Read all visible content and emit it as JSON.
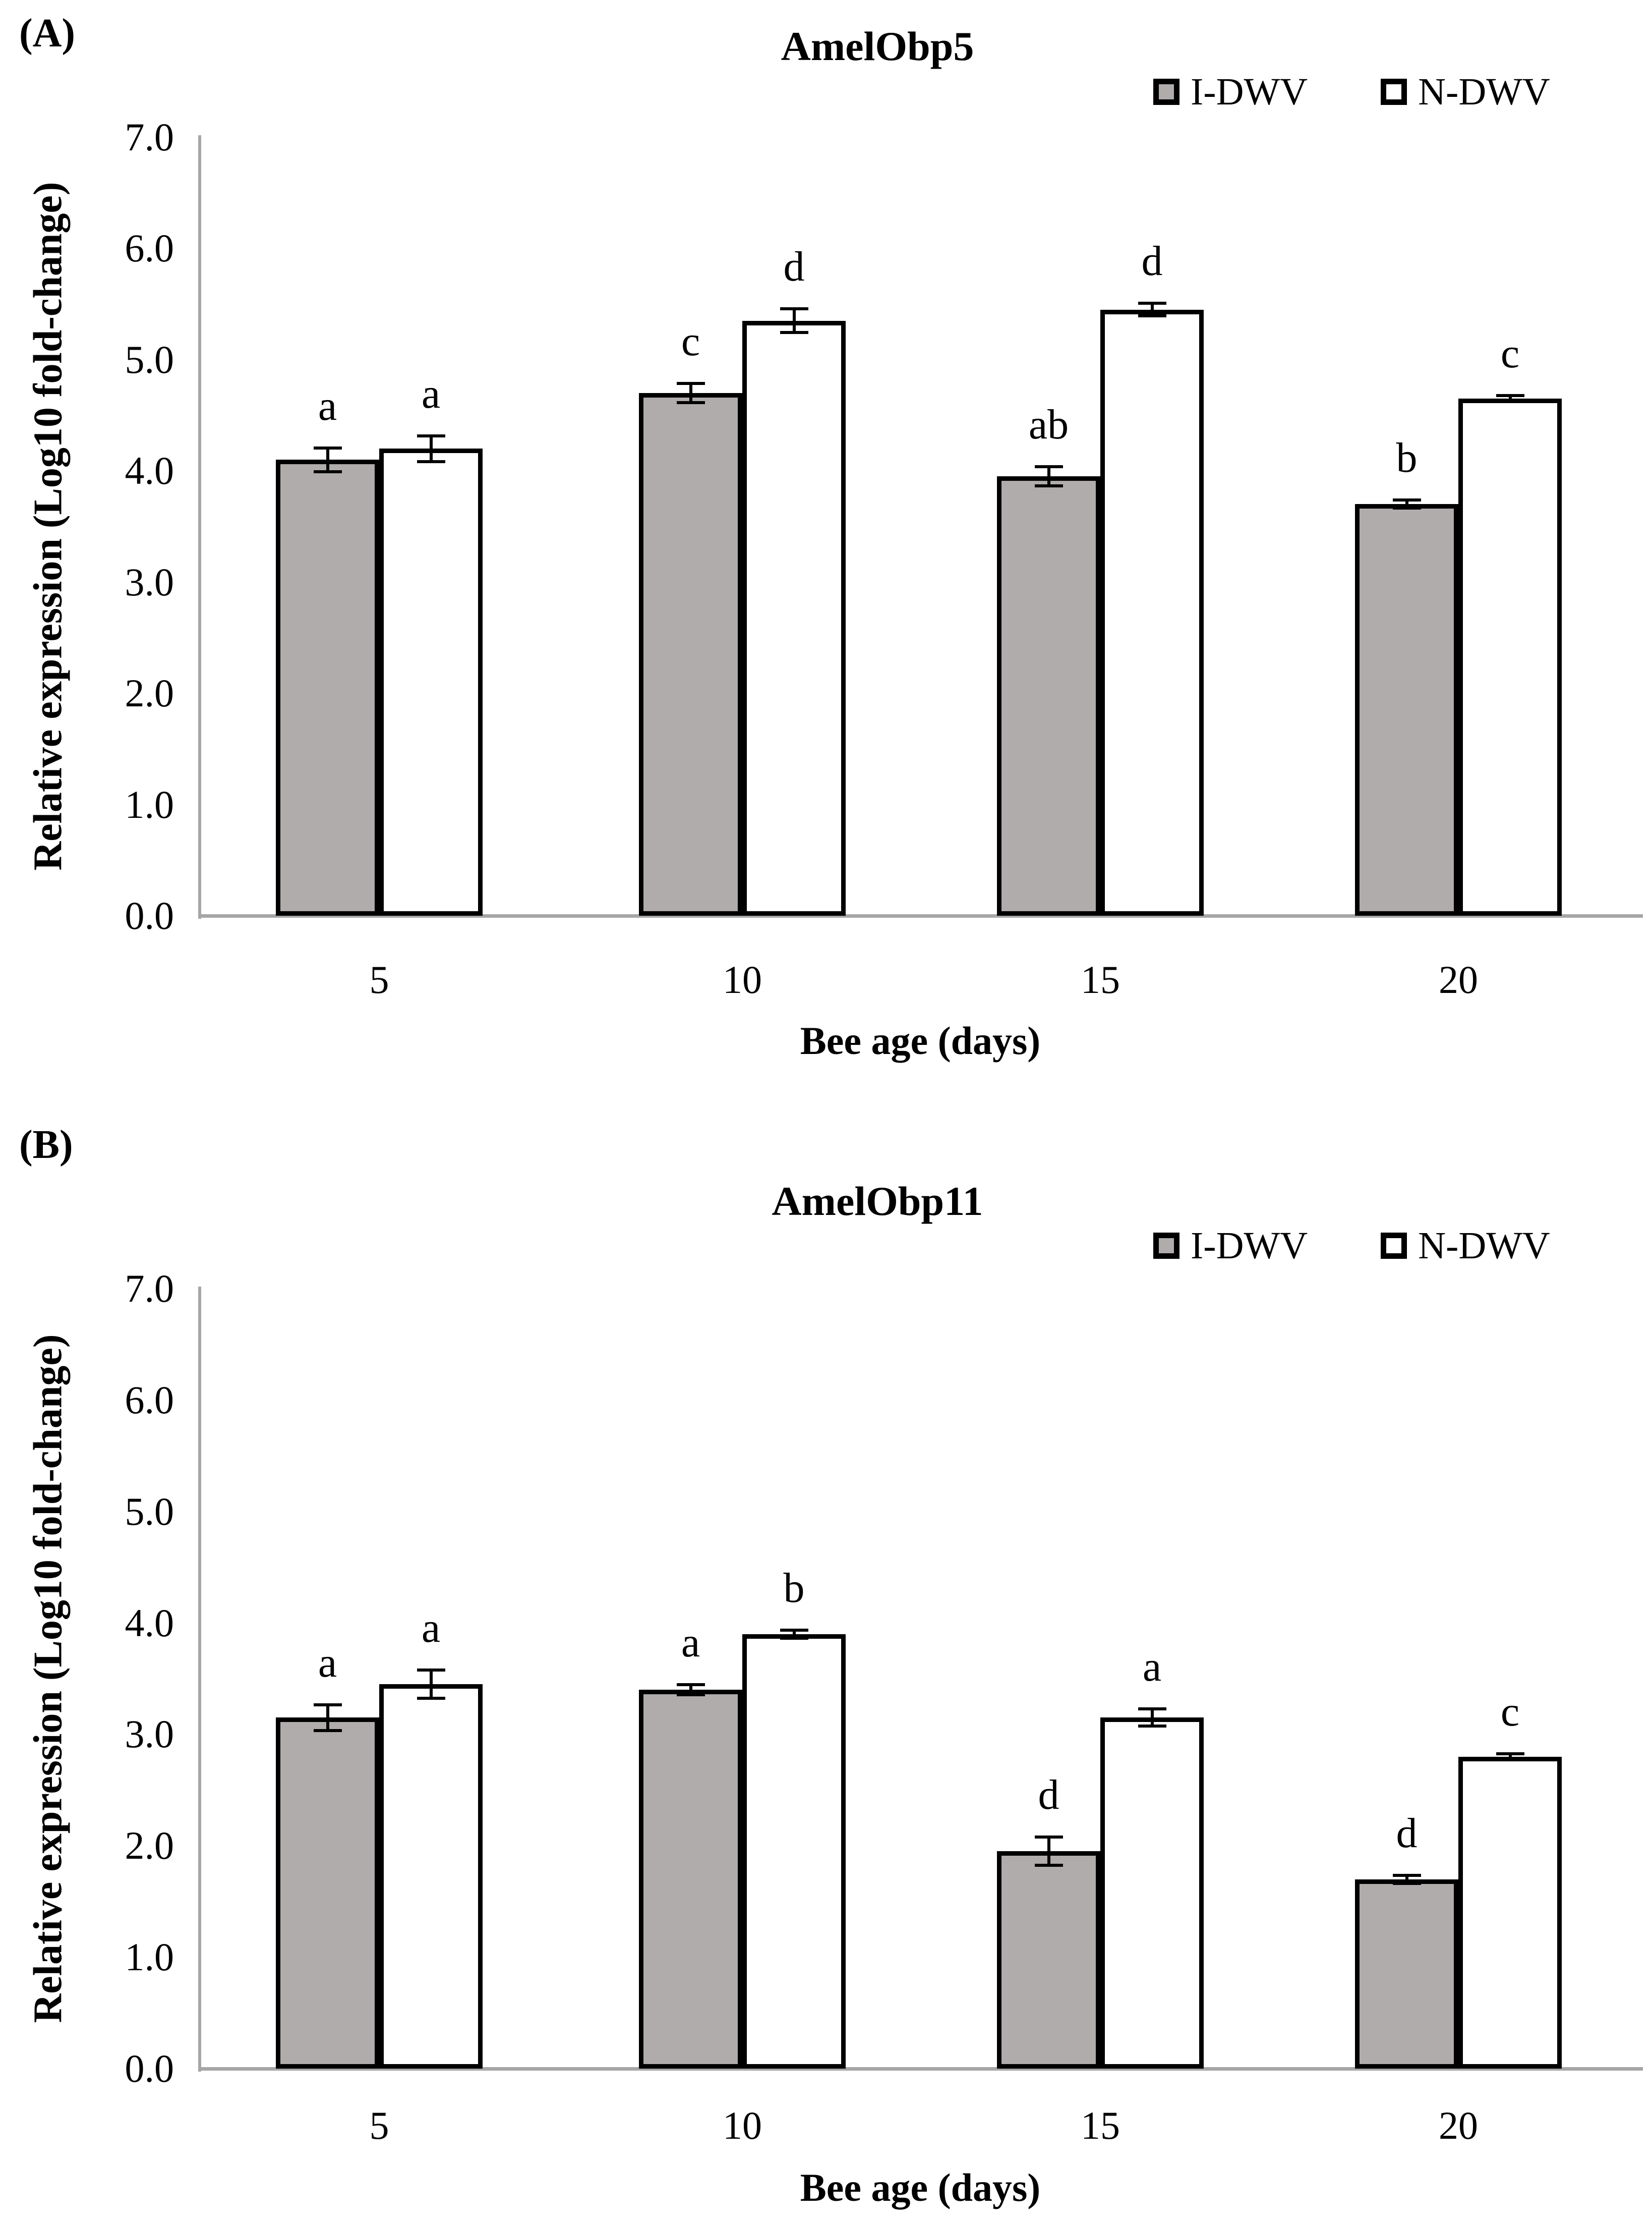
{
  "chart_data": [
    {
      "type": "bar",
      "panel_label": "(A)",
      "title": "AmelObp5",
      "xlabel": "Bee age (days)",
      "ylabel": "Relative expression (Log10 fold-change)",
      "categories": [
        "5",
        "10",
        "15",
        "20"
      ],
      "ytick_labels": [
        "7.0",
        "6.0",
        "5.0",
        "4.0",
        "3.0",
        "2.0",
        "1.0",
        "0.0"
      ],
      "ylim": [
        0.0,
        7.0
      ],
      "grid": false,
      "legend_position": "top-right",
      "axis_color": "#A6A6A6",
      "bar_border_color": "#000000",
      "series": [
        {
          "name": "I-DWV",
          "fill": "#AFACAB",
          "values": [
            4.1,
            4.7,
            3.95,
            3.7
          ],
          "errors": [
            0.12,
            0.1,
            0.1,
            0.05
          ],
          "letters": [
            "a",
            "c",
            "ab",
            "b"
          ]
        },
        {
          "name": "N-DWV",
          "fill": "#FFFFFF",
          "values": [
            4.2,
            5.35,
            5.45,
            4.65
          ],
          "errors": [
            0.13,
            0.12,
            0.07,
            0.04
          ],
          "letters": [
            "a",
            "d",
            "d",
            "c"
          ]
        }
      ]
    },
    {
      "type": "bar",
      "panel_label": "(B)",
      "title": "AmelObp11",
      "xlabel": "Bee age (days)",
      "ylabel": "Relative expression (Log10 fold-change)",
      "categories": [
        "5",
        "10",
        "15",
        "20"
      ],
      "ytick_labels": [
        "7.0",
        "6.0",
        "5.0",
        "4.0",
        "3.0",
        "2.0",
        "1.0",
        "0.0"
      ],
      "ylim": [
        0.0,
        7.0
      ],
      "grid": false,
      "legend_position": "top-right",
      "axis_color": "#A6A6A6",
      "bar_border_color": "#000000",
      "series": [
        {
          "name": "I-DWV",
          "fill": "#AFACAB",
          "values": [
            3.15,
            3.4,
            1.95,
            1.7
          ],
          "errors": [
            0.13,
            0.06,
            0.14,
            0.05
          ],
          "letters": [
            "a",
            "a",
            "d",
            "d"
          ]
        },
        {
          "name": "N-DWV",
          "fill": "#FFFFFF",
          "values": [
            3.45,
            3.9,
            3.15,
            2.8
          ],
          "errors": [
            0.14,
            0.05,
            0.09,
            0.04
          ],
          "letters": [
            "a",
            "b",
            "a",
            "c"
          ]
        }
      ]
    }
  ]
}
